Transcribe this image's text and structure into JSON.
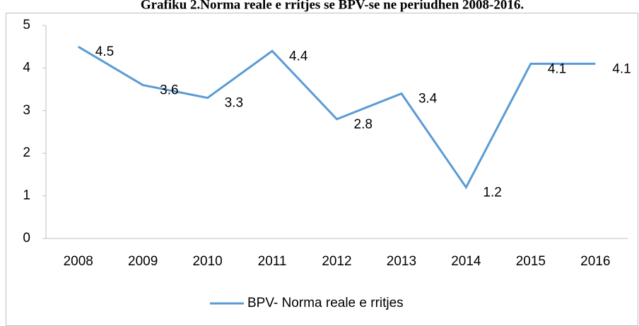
{
  "chart_data": {
    "type": "line",
    "title": "Grafiku 2.Norma reale e rritjes se BPV-se ne periudhen 2008-2016.",
    "categories": [
      "2008",
      "2009",
      "2010",
      "2011",
      "2012",
      "2013",
      "2014",
      "2015",
      "2016"
    ],
    "series": [
      {
        "name": "BPV- Norma reale e rritjes",
        "color": "#5b9bd5",
        "values": [
          4.5,
          3.6,
          3.3,
          4.4,
          2.8,
          3.4,
          1.2,
          4.1,
          4.1
        ]
      }
    ],
    "ylim": [
      0,
      5
    ],
    "yticks": [
      0,
      1,
      2,
      3,
      4,
      5
    ],
    "grid": false,
    "legend": "bottom"
  }
}
